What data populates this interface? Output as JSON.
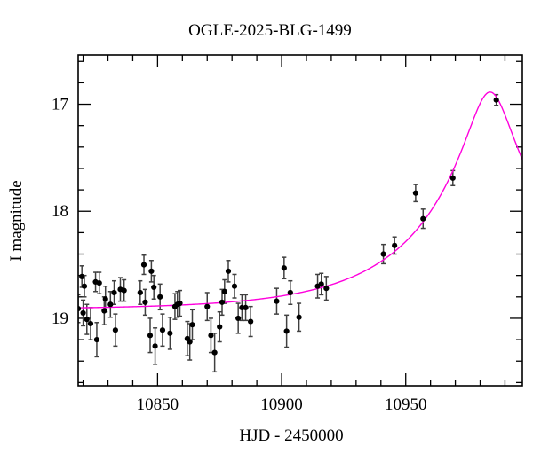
{
  "figure": {
    "background_color": "#ffffff",
    "frame_color": "#000000"
  },
  "chart_data": {
    "type": "scatter",
    "title": "OGLE-2025-BLG-1499",
    "xlabel": "HJD - 2450000",
    "ylabel": "I magnitude",
    "xlim": [
      10818,
      10997
    ],
    "ylim": [
      19.63,
      16.54
    ],
    "y_axis_inverted": true,
    "grid": false,
    "legend_position": "none",
    "x_major_ticks": [
      10850,
      10900,
      10950
    ],
    "x_minor_step": 10,
    "y_major_ticks": [
      17,
      18,
      19
    ],
    "y_minor_step": 0.2,
    "series": [
      {
        "name": "OGLE I-band photometry",
        "type": "scatter_errorbar",
        "marker": "filled-circle",
        "point_color": "#000000",
        "errorbar_color": "#404040",
        "points_format": [
          "hjd_minus_2450000",
          "I_mag",
          "mag_error"
        ],
        "points": [
          [
            10818.0,
            18.91,
            0.13
          ],
          [
            10819.5,
            18.61,
            0.1
          ],
          [
            10820.0,
            18.95,
            0.12
          ],
          [
            10820.5,
            18.7,
            0.1
          ],
          [
            10821.5,
            19.01,
            0.14
          ],
          [
            10823.0,
            19.05,
            0.15
          ],
          [
            10825.0,
            18.66,
            0.09
          ],
          [
            10825.5,
            19.2,
            0.16
          ],
          [
            10826.5,
            18.67,
            0.1
          ],
          [
            10828.5,
            18.93,
            0.13
          ],
          [
            10829.0,
            18.82,
            0.12
          ],
          [
            10831.0,
            18.87,
            0.12
          ],
          [
            10832.5,
            18.76,
            0.11
          ],
          [
            10833.0,
            19.11,
            0.15
          ],
          [
            10835.0,
            18.73,
            0.11
          ],
          [
            10836.5,
            18.74,
            0.1
          ],
          [
            10843.0,
            18.76,
            0.11
          ],
          [
            10844.5,
            18.5,
            0.09
          ],
          [
            10845.0,
            18.85,
            0.12
          ],
          [
            10847.0,
            19.16,
            0.16
          ],
          [
            10847.5,
            18.56,
            0.1
          ],
          [
            10848.5,
            18.71,
            0.11
          ],
          [
            10849.0,
            19.26,
            0.17
          ],
          [
            10851.0,
            18.8,
            0.12
          ],
          [
            10852.0,
            19.11,
            0.15
          ],
          [
            10855.0,
            19.14,
            0.15
          ],
          [
            10857.0,
            18.89,
            0.12
          ],
          [
            10858.0,
            18.87,
            0.12
          ],
          [
            10859.0,
            18.86,
            0.12
          ],
          [
            10862.0,
            19.19,
            0.16
          ],
          [
            10863.0,
            19.22,
            0.17
          ],
          [
            10864.0,
            19.06,
            0.14
          ],
          [
            10870.0,
            18.89,
            0.13
          ],
          [
            10871.5,
            19.16,
            0.16
          ],
          [
            10873.0,
            19.32,
            0.18
          ],
          [
            10875.0,
            19.08,
            0.14
          ],
          [
            10876.0,
            18.85,
            0.12
          ],
          [
            10877.0,
            18.75,
            0.11
          ],
          [
            10878.5,
            18.56,
            0.1
          ],
          [
            10881.0,
            18.7,
            0.11
          ],
          [
            10882.5,
            19.0,
            0.14
          ],
          [
            10884.0,
            18.9,
            0.12
          ],
          [
            10885.5,
            18.9,
            0.12
          ],
          [
            10887.5,
            19.03,
            0.14
          ],
          [
            10898.0,
            18.84,
            0.12
          ],
          [
            10901.0,
            18.53,
            0.1
          ],
          [
            10902.0,
            19.12,
            0.15
          ],
          [
            10903.5,
            18.76,
            0.11
          ],
          [
            10907.0,
            18.99,
            0.13
          ],
          [
            10914.5,
            18.7,
            0.11
          ],
          [
            10916.0,
            18.68,
            0.1
          ],
          [
            10918.0,
            18.72,
            0.11
          ],
          [
            10941.0,
            18.4,
            0.09
          ],
          [
            10945.5,
            18.32,
            0.08
          ],
          [
            10954.0,
            17.83,
            0.08
          ],
          [
            10957.0,
            18.07,
            0.09
          ],
          [
            10969.0,
            17.69,
            0.07
          ],
          [
            10986.5,
            16.96,
            0.05
          ]
        ]
      },
      {
        "name": "microlensing model",
        "type": "line",
        "color": "#ff00dd",
        "model": {
          "kind": "paczynski",
          "t0": 10984,
          "tE": 55,
          "u0": 0.155,
          "baseline_I0": 18.92,
          "peak_I": 16.89
        }
      }
    ]
  }
}
